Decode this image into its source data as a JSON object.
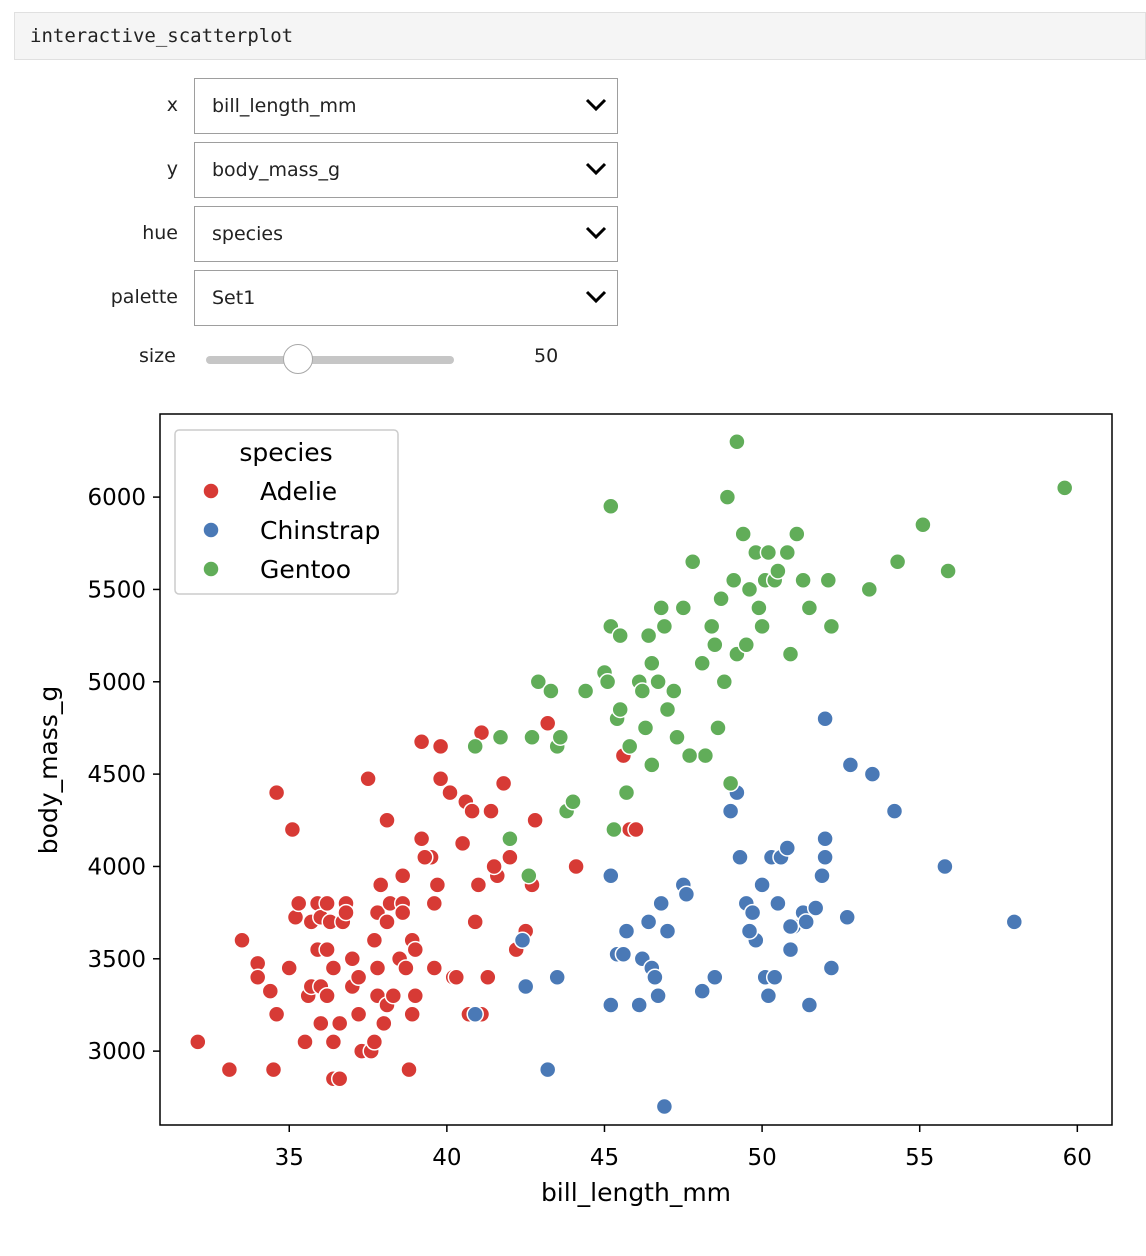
{
  "cell": {
    "title": "interactive_scatterplot"
  },
  "controls": {
    "x": {
      "label": "x",
      "value": "bill_length_mm"
    },
    "y": {
      "label": "y",
      "value": "body_mass_g"
    },
    "hue": {
      "label": "hue",
      "value": "species"
    },
    "palette": {
      "label": "palette",
      "value": "Set1"
    },
    "size": {
      "label": "size",
      "value": "50",
      "min": 0,
      "max": 160
    }
  },
  "icons": {
    "dropdown": "chevron-down-icon",
    "marker": "circle-marker"
  },
  "chart_data": {
    "type": "scatter",
    "xlabel": "bill_length_mm",
    "ylabel": "body_mass_g",
    "xlim": [
      30.9,
      61.1
    ],
    "ylim": [
      2600,
      6450
    ],
    "xticks": [
      35,
      40,
      45,
      50,
      55,
      60
    ],
    "yticks": [
      3000,
      3500,
      4000,
      4500,
      5000,
      5500,
      6000
    ],
    "legend": {
      "title": "species",
      "position": "top-left"
    },
    "series": [
      {
        "name": "Adelie",
        "color": "#d73a35",
        "points": [
          [
            32.1,
            3050
          ],
          [
            33.1,
            2900
          ],
          [
            33.5,
            3600
          ],
          [
            34.0,
            3475
          ],
          [
            34.0,
            3400
          ],
          [
            34.4,
            3325
          ],
          [
            34.5,
            2900
          ],
          [
            34.6,
            4400
          ],
          [
            34.6,
            3200
          ],
          [
            35.1,
            4200
          ],
          [
            35.0,
            3450
          ],
          [
            35.2,
            3725
          ],
          [
            35.3,
            3800
          ],
          [
            35.5,
            3050
          ],
          [
            35.6,
            3300
          ],
          [
            35.7,
            3700
          ],
          [
            35.7,
            3350
          ],
          [
            35.9,
            3800
          ],
          [
            35.9,
            3550
          ],
          [
            36.0,
            3150
          ],
          [
            36.0,
            3725
          ],
          [
            36.0,
            3350
          ],
          [
            36.2,
            3300
          ],
          [
            36.2,
            3550
          ],
          [
            36.3,
            3700
          ],
          [
            36.2,
            3800
          ],
          [
            36.4,
            3050
          ],
          [
            36.4,
            3450
          ],
          [
            36.4,
            2850
          ],
          [
            36.6,
            2850
          ],
          [
            36.6,
            3150
          ],
          [
            36.7,
            3700
          ],
          [
            36.8,
            3800
          ],
          [
            37.0,
            3500
          ],
          [
            37.0,
            3350
          ],
          [
            37.2,
            3400
          ],
          [
            37.2,
            3200
          ],
          [
            37.3,
            3000
          ],
          [
            37.5,
            4475
          ],
          [
            37.6,
            3000
          ],
          [
            37.7,
            3600
          ],
          [
            37.8,
            3750
          ],
          [
            37.8,
            3300
          ],
          [
            37.7,
            3050
          ],
          [
            38.0,
            3150
          ],
          [
            38.1,
            3700
          ],
          [
            38.1,
            4250
          ],
          [
            38.1,
            3250
          ],
          [
            38.2,
            3800
          ],
          [
            38.3,
            3300
          ],
          [
            38.6,
            3800
          ],
          [
            38.6,
            3950
          ],
          [
            38.5,
            3500
          ],
          [
            38.7,
            3450
          ],
          [
            38.8,
            2900
          ],
          [
            38.9,
            3600
          ],
          [
            38.9,
            3200
          ],
          [
            39.0,
            3300
          ],
          [
            39.0,
            3550
          ],
          [
            39.2,
            4675
          ],
          [
            39.2,
            4150
          ],
          [
            39.6,
            3450
          ],
          [
            39.6,
            3800
          ],
          [
            39.7,
            3900
          ],
          [
            39.8,
            4475
          ],
          [
            39.8,
            4650
          ],
          [
            40.2,
            3400
          ],
          [
            40.3,
            3400
          ],
          [
            40.5,
            4125
          ],
          [
            40.6,
            4350
          ],
          [
            40.7,
            3200
          ],
          [
            40.8,
            4300
          ],
          [
            41.1,
            4725
          ],
          [
            41.1,
            3200
          ],
          [
            41.3,
            3400
          ],
          [
            41.4,
            4300
          ],
          [
            41.6,
            3950
          ],
          [
            41.8,
            4450
          ],
          [
            42.0,
            4050
          ],
          [
            42.2,
            3550
          ],
          [
            42.7,
            3900
          ],
          [
            42.8,
            4250
          ],
          [
            43.2,
            4775
          ],
          [
            44.1,
            4000
          ],
          [
            45.8,
            4200
          ],
          [
            46.0,
            4200
          ],
          [
            45.6,
            4600
          ],
          [
            41.5,
            4000
          ],
          [
            41.0,
            3900
          ],
          [
            40.9,
            3700
          ],
          [
            42.5,
            3650
          ],
          [
            39.5,
            4050
          ],
          [
            38.6,
            3750
          ],
          [
            37.9,
            3900
          ],
          [
            40.1,
            4400
          ],
          [
            39.3,
            4050
          ],
          [
            36.8,
            3750
          ],
          [
            37.8,
            3450
          ]
        ]
      },
      {
        "name": "Chinstrap",
        "color": "#4a79b6",
        "points": [
          [
            40.9,
            3200
          ],
          [
            42.4,
            3600
          ],
          [
            42.5,
            3350
          ],
          [
            43.2,
            2900
          ],
          [
            43.5,
            3400
          ],
          [
            45.2,
            3950
          ],
          [
            45.2,
            3250
          ],
          [
            45.4,
            3525
          ],
          [
            45.6,
            3525
          ],
          [
            45.7,
            3650
          ],
          [
            46.1,
            3250
          ],
          [
            46.2,
            3500
          ],
          [
            46.4,
            3700
          ],
          [
            46.5,
            3450
          ],
          [
            46.6,
            3400
          ],
          [
            46.7,
            3300
          ],
          [
            46.8,
            3800
          ],
          [
            46.9,
            2700
          ],
          [
            47.0,
            3650
          ],
          [
            47.5,
            3900
          ],
          [
            47.6,
            3850
          ],
          [
            48.1,
            3325
          ],
          [
            48.5,
            3400
          ],
          [
            49.0,
            4300
          ],
          [
            49.2,
            4400
          ],
          [
            49.3,
            4050
          ],
          [
            49.5,
            3800
          ],
          [
            49.7,
            3750
          ],
          [
            49.8,
            3600
          ],
          [
            50.0,
            3900
          ],
          [
            50.1,
            3400
          ],
          [
            50.2,
            3300
          ],
          [
            50.3,
            4050
          ],
          [
            50.4,
            3400
          ],
          [
            50.5,
            3800
          ],
          [
            50.6,
            4050
          ],
          [
            50.8,
            4100
          ],
          [
            50.9,
            3550
          ],
          [
            51.0,
            3675
          ],
          [
            51.3,
            3750
          ],
          [
            51.4,
            3700
          ],
          [
            51.5,
            3250
          ],
          [
            51.7,
            3775
          ],
          [
            52.0,
            4050
          ],
          [
            52.0,
            4800
          ],
          [
            52.2,
            3450
          ],
          [
            52.7,
            3725
          ],
          [
            52.8,
            4550
          ],
          [
            53.5,
            4500
          ],
          [
            54.2,
            4300
          ],
          [
            55.8,
            4000
          ],
          [
            58.0,
            3700
          ],
          [
            49.6,
            3650
          ],
          [
            50.9,
            3675
          ],
          [
            52.0,
            4150
          ],
          [
            51.9,
            3950
          ]
        ]
      },
      {
        "name": "Gentoo",
        "color": "#61ad59",
        "points": [
          [
            40.9,
            4650
          ],
          [
            41.7,
            4700
          ],
          [
            42.0,
            4150
          ],
          [
            42.6,
            3950
          ],
          [
            42.7,
            4700
          ],
          [
            42.9,
            5000
          ],
          [
            43.3,
            4950
          ],
          [
            43.5,
            4650
          ],
          [
            43.6,
            4700
          ],
          [
            43.8,
            4300
          ],
          [
            44.0,
            4350
          ],
          [
            44.4,
            4950
          ],
          [
            45.0,
            5050
          ],
          [
            45.1,
            5000
          ],
          [
            45.2,
            5300
          ],
          [
            45.2,
            5950
          ],
          [
            45.3,
            4200
          ],
          [
            45.4,
            4800
          ],
          [
            45.5,
            4850
          ],
          [
            45.7,
            4400
          ],
          [
            45.8,
            4650
          ],
          [
            46.1,
            5000
          ],
          [
            46.2,
            4950
          ],
          [
            46.3,
            4750
          ],
          [
            46.4,
            5250
          ],
          [
            46.5,
            5100
          ],
          [
            46.7,
            5000
          ],
          [
            46.8,
            5400
          ],
          [
            47.0,
            4850
          ],
          [
            47.3,
            4700
          ],
          [
            47.5,
            5400
          ],
          [
            47.8,
            5650
          ],
          [
            48.1,
            5100
          ],
          [
            48.2,
            4600
          ],
          [
            48.4,
            5300
          ],
          [
            48.5,
            5200
          ],
          [
            48.7,
            5450
          ],
          [
            48.8,
            5000
          ],
          [
            49.1,
            5550
          ],
          [
            49.2,
            5150
          ],
          [
            49.2,
            6300
          ],
          [
            49.4,
            5800
          ],
          [
            49.5,
            5200
          ],
          [
            49.6,
            5500
          ],
          [
            49.8,
            5700
          ],
          [
            49.9,
            5400
          ],
          [
            50.0,
            5300
          ],
          [
            50.1,
            5550
          ],
          [
            50.2,
            5700
          ],
          [
            50.4,
            5550
          ],
          [
            50.5,
            5600
          ],
          [
            50.8,
            5700
          ],
          [
            50.9,
            5150
          ],
          [
            51.1,
            5800
          ],
          [
            51.3,
            5550
          ],
          [
            51.5,
            5400
          ],
          [
            52.1,
            5550
          ],
          [
            52.2,
            5300
          ],
          [
            53.4,
            5500
          ],
          [
            54.3,
            5650
          ],
          [
            55.1,
            5850
          ],
          [
            55.9,
            5600
          ],
          [
            59.6,
            6050
          ],
          [
            48.6,
            4750
          ],
          [
            49.0,
            4450
          ],
          [
            46.9,
            5300
          ],
          [
            46.5,
            4550
          ],
          [
            47.2,
            4950
          ],
          [
            45.5,
            5250
          ],
          [
            47.7,
            4600
          ],
          [
            48.9,
            6000
          ]
        ]
      }
    ]
  }
}
